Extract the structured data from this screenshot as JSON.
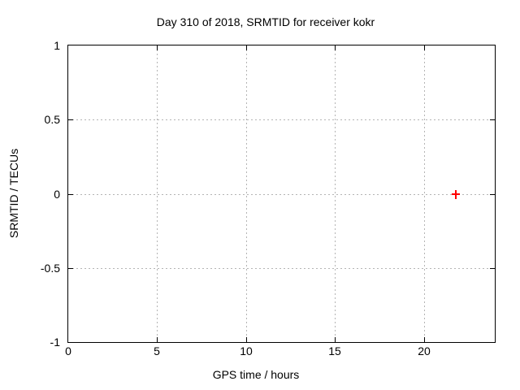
{
  "title": "Day 310 of 2018, SRMTID for receiver kokr",
  "colors": {
    "background": "#ffffff",
    "axis": "#000000",
    "grid": "#b4b4b4",
    "marker": "#ff0000"
  },
  "chart_data": {
    "type": "scatter",
    "title": "Day 310 of 2018, SRMTID for receiver kokr",
    "xlabel": "GPS time / hours",
    "ylabel": "SRMTID / TECUs",
    "xlim": [
      0,
      24
    ],
    "ylim": [
      -1,
      1
    ],
    "xticks": [
      0,
      5,
      10,
      15,
      20
    ],
    "yticks": [
      -1,
      -0.5,
      0,
      0.5,
      1
    ],
    "grid": true,
    "legend": "none",
    "series": [
      {
        "name": "SRMTID",
        "marker": "plus",
        "color": "#ff0000",
        "points": [
          {
            "x": 21.8,
            "y": 0.0
          }
        ]
      }
    ]
  }
}
